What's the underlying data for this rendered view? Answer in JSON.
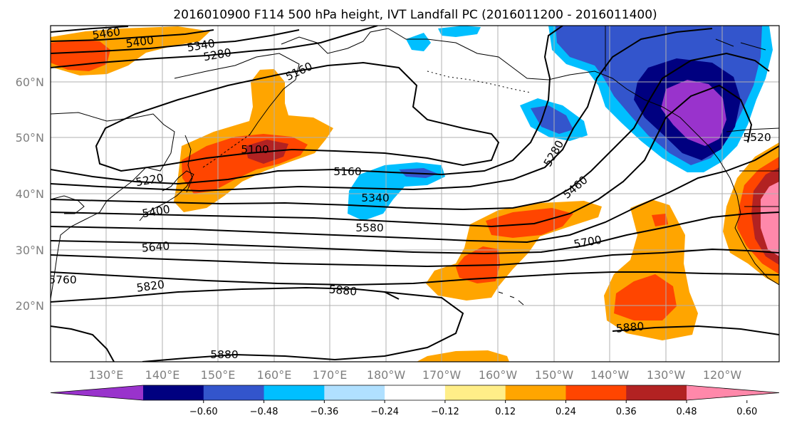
{
  "chart_data": {
    "type": "map",
    "title": "2016010900 F114 500 hPa height, IVT Landfall PC (2016011200 - 2016011400)",
    "lat_labels": [
      "60°N",
      "50°N",
      "40°N",
      "30°N",
      "20°N"
    ],
    "lon_labels": [
      "130°E",
      "140°E",
      "150°E",
      "160°E",
      "170°E",
      "180°W",
      "170°W",
      "160°W",
      "150°W",
      "140°W",
      "130°W",
      "120°W"
    ],
    "grid": true,
    "contour_labels": [
      "5460",
      "5400",
      "5340",
      "5280",
      "5160",
      "5100",
      "5220",
      "5400",
      "5160",
      "5340",
      "5580",
      "5640",
      "5760",
      "5820",
      "5880",
      "5880",
      "5280",
      "5460",
      "5700",
      "5520",
      "5880"
    ],
    "colorbar": {
      "ticks": [
        "−0.60",
        "−0.48",
        "−0.36",
        "−0.24",
        "−0.12",
        "0.12",
        "0.24",
        "0.36",
        "0.48",
        "0.60"
      ],
      "colors": [
        "#9933cc",
        "#000080",
        "#3355cc",
        "#00bfff",
        "#b0e0ff",
        "#ffffff",
        "#ffee88",
        "#ffa500",
        "#ff4500",
        "#b22222",
        "#ff88aa"
      ]
    }
  },
  "colors": {
    "neg_strong": "#9933cc",
    "neg_dark": "#000080",
    "neg_mid": "#3355cc",
    "neg_light": "#00bfff",
    "neg_pale": "#b0e0ff",
    "pos_pale": "#ffee88",
    "pos_light": "#ffa500",
    "pos_mid": "#ff4500",
    "pos_dark": "#b22222",
    "pos_strong": "#ff88aa"
  }
}
